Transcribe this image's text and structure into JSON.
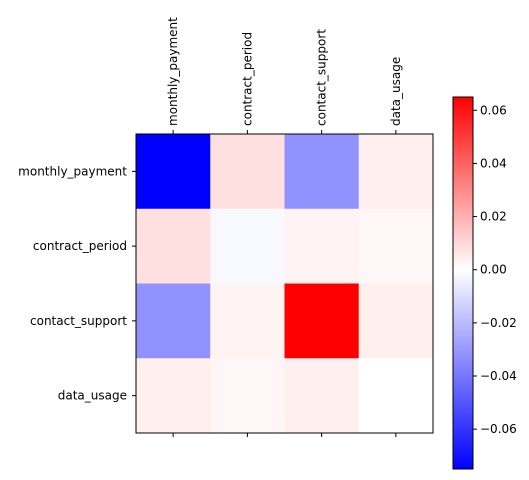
{
  "chart_data": {
    "type": "heatmap",
    "title": "",
    "xlabel": "",
    "ylabel": "",
    "x_categories": [
      "monthly_payment",
      "contract_period",
      "contact_support",
      "data_usage"
    ],
    "y_categories": [
      "monthly_payment",
      "contract_period",
      "contact_support",
      "data_usage"
    ],
    "values": [
      [
        -0.075,
        0.008,
        -0.032,
        0.004
      ],
      [
        0.008,
        -0.002,
        0.003,
        0.002
      ],
      [
        -0.032,
        0.003,
        0.065,
        0.004
      ],
      [
        0.004,
        0.002,
        0.004,
        0.0
      ]
    ],
    "colormap": "bwr",
    "color_range": [
      -0.075,
      0.065
    ],
    "colors": {
      "low": "#0000ff",
      "mid": "#ffffff",
      "high": "#ff0000"
    },
    "colorbar": {
      "ticks": [
        -0.06,
        -0.04,
        -0.02,
        0.0,
        0.02,
        0.04,
        0.06
      ],
      "tick_labels": [
        "−0.06",
        "−0.04",
        "−0.02",
        "0.00",
        "0.02",
        "0.04",
        "0.06"
      ]
    },
    "x_tick_position": "top"
  }
}
